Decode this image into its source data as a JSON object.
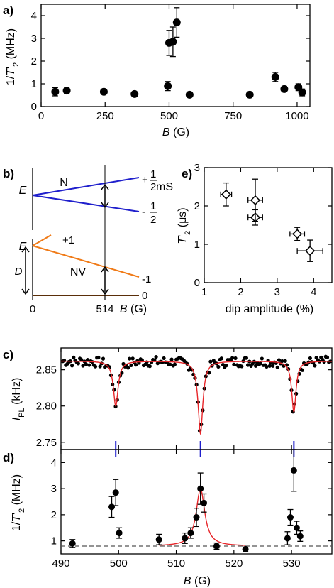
{
  "chart_data": [
    {
      "panel": "a)",
      "type": "scatter",
      "xlabel": "B (G)",
      "ylabel": "1/T'2 (MHz)",
      "xlim": [
        0,
        1050
      ],
      "ylim": [
        0,
        4.5
      ],
      "xticks": [
        "0",
        "250",
        "500",
        "750",
        "1000"
      ],
      "yticks": [
        "0",
        "1",
        "2",
        "3",
        "4"
      ],
      "x": [
        55,
        100,
        245,
        365,
        495,
        500,
        515,
        530,
        580,
        815,
        915,
        950,
        1005,
        1020
      ],
      "y": [
        0.65,
        0.7,
        0.65,
        0.55,
        0.9,
        2.8,
        2.85,
        3.7,
        0.52,
        0.52,
        1.3,
        0.77,
        0.85,
        0.62
      ],
      "err": [
        0.18,
        0.12,
        0.1,
        0.08,
        0.2,
        0.55,
        0.65,
        0.65,
        0.08,
        0.08,
        0.2,
        0.12,
        0.15,
        0.15
      ]
    },
    {
      "panel": "b)",
      "type": "diagram",
      "e_label": "E",
      "ms_label": "mS",
      "n_label": "N",
      "nv_label": "NV",
      "n_levels": [
        "+1/2",
        "-1/2"
      ],
      "nv_levels": [
        "+1",
        "-1",
        "0"
      ],
      "d_label": "D",
      "x_ticks": [
        "0",
        "514"
      ],
      "xlabel": "B (G)"
    },
    {
      "panel": "e)",
      "type": "scatter",
      "xlabel": "dip amplitude (%)",
      "ylabel": "T'2 (μs)",
      "xlim": [
        1,
        4.5
      ],
      "ylim": [
        0,
        3
      ],
      "xticks": [
        "1",
        "2",
        "3",
        "4"
      ],
      "yticks": [
        "0",
        "1",
        "2",
        "3"
      ],
      "x": [
        1.6,
        2.4,
        2.4,
        3.55,
        3.9
      ],
      "y": [
        2.3,
        1.7,
        2.15,
        1.27,
        0.83
      ],
      "xerr": [
        0.15,
        0.2,
        0.2,
        0.2,
        0.35
      ],
      "yerr": [
        0.3,
        0.2,
        0.55,
        0.17,
        0.28
      ]
    },
    {
      "panel": "c)",
      "type": "scatter",
      "ylabel": "IPL (kHz)",
      "xlim": [
        490,
        537
      ],
      "ylim": [
        2.74,
        2.88
      ],
      "yticks": [
        "2.75",
        "2.80",
        "2.85"
      ],
      "markers_x": [
        499.5,
        514.2,
        530.4
      ],
      "fit_baseline": 2.862,
      "dips": [
        {
          "center": 499.5,
          "depth": 0.062,
          "width": 0.5
        },
        {
          "center": 514.2,
          "depth": 0.1,
          "width": 0.5
        },
        {
          "center": 530.4,
          "depth": 0.07,
          "width": 0.45
        }
      ]
    },
    {
      "panel": "d)",
      "type": "scatter",
      "xlabel": "B (G)",
      "ylabel": "1/T'2 (MHz)",
      "xlim": [
        490,
        537
      ],
      "ylim": [
        0.5,
        4.5
      ],
      "xticks": [
        "490",
        "500",
        "510",
        "520",
        "530"
      ],
      "yticks": [
        "1",
        "2",
        "3",
        "4"
      ],
      "baseline": 0.8,
      "x": [
        492,
        498.8,
        499.5,
        500.1,
        507,
        511.5,
        512.5,
        513.5,
        514.2,
        514.8,
        517,
        522,
        529.3,
        529.8,
        530.4,
        530.9,
        531.5
      ],
      "y": [
        0.9,
        2.3,
        2.85,
        1.3,
        1.05,
        1.1,
        1.3,
        1.9,
        3.0,
        2.45,
        0.8,
        0.68,
        1.1,
        1.9,
        3.7,
        1.5,
        1.18
      ],
      "err": [
        0.15,
        0.4,
        0.5,
        0.2,
        0.2,
        0.2,
        0.2,
        0.35,
        0.6,
        0.35,
        0.12,
        0.08,
        0.25,
        0.3,
        0.8,
        0.25,
        0.2
      ]
    }
  ]
}
